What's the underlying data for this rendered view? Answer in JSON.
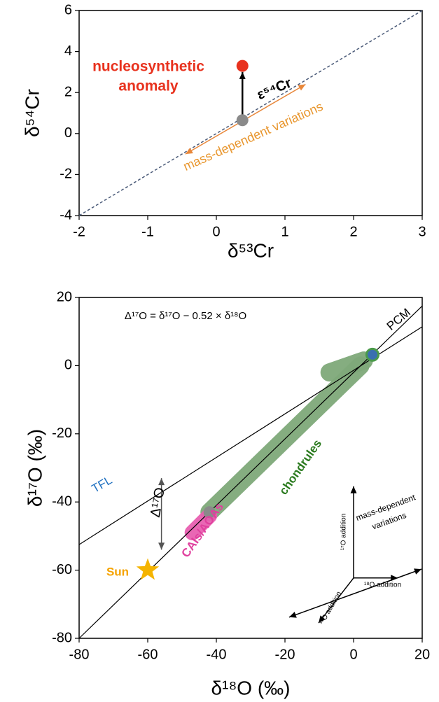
{
  "chart_data": [
    {
      "type": "scatter",
      "xlabel": "δ⁵³Cr",
      "ylabel": "δ⁵⁴Cr",
      "xlim": [
        -2,
        3
      ],
      "ylim": [
        -4,
        6
      ],
      "xticks": [
        -2,
        -1,
        0,
        1,
        2,
        3
      ],
      "yticks": [
        -4,
        -2,
        0,
        2,
        4,
        6
      ],
      "lines": [
        {
          "x": [
            -2,
            3
          ],
          "y": [
            -4,
            6
          ],
          "color": "#4a5a78",
          "dash": true
        }
      ],
      "bands": [],
      "arrows": [
        {
          "x": [
            0.38,
            0.38
          ],
          "y": [
            0.65,
            3.0
          ],
          "color": "#000000",
          "heads": 1
        },
        {
          "x": [
            -0.45,
            1.3
          ],
          "y": [
            -1.0,
            2.4
          ],
          "color": "#e8873a",
          "heads": 2
        }
      ],
      "points": {
        "x": [
          0.38,
          0.38
        ],
        "y": [
          0.65,
          3.3
        ],
        "colors": [
          "#8a8a8a",
          "#e8321e"
        ],
        "shapes": [
          "circle",
          "circle"
        ]
      },
      "annotations": [
        "nucleosynthetic",
        "anomaly",
        "ε⁵⁴Cr",
        "mass-dependent variations"
      ],
      "annotation_colors": [
        "#e8321e",
        "#e8321e",
        "#000000",
        "#e8962e"
      ]
    },
    {
      "type": "scatter",
      "xlabel": "δ¹⁸O (‰)",
      "ylabel": "δ¹⁷O (‰)",
      "xlim": [
        -80,
        20
      ],
      "ylim": [
        -80,
        20
      ],
      "xticks": [
        -80,
        -60,
        -40,
        -20,
        0,
        20
      ],
      "yticks": [
        -80,
        -60,
        -40,
        -20,
        0,
        20
      ],
      "lines": [
        {
          "x": [
            -80,
            20
          ],
          "y": [
            -52.5,
            11.4
          ],
          "color": "#000000",
          "dash": false
        },
        {
          "x": [
            -80,
            20
          ],
          "y": [
            -80,
            17.5
          ],
          "color": "#000000",
          "dash": false
        }
      ],
      "bands": [
        {
          "x": [
            -42,
            2
          ],
          "y": [
            -43,
            0
          ],
          "color": "#7fa97a"
        },
        {
          "x": [
            -7,
            3
          ],
          "y": [
            -2,
            1.5
          ],
          "color": "#7fa97a"
        },
        {
          "x": [
            -47,
            -42
          ],
          "y": [
            -49,
            -44
          ],
          "color": "#e85fb0"
        }
      ],
      "arrows": [
        {
          "x": [
            -56,
            -56
          ],
          "y": [
            -33,
            -54
          ],
          "color": "#555555",
          "heads": 2
        },
        {
          "x": [
            0,
            0
          ],
          "y": [
            -62.3,
            -35.4
          ],
          "color": "#000000",
          "heads": 1
        },
        {
          "x": [
            0,
            12.9
          ],
          "y": [
            -62.3,
            -62.3
          ],
          "color": "#000000",
          "heads": 1
        },
        {
          "x": [
            0,
            -10.2
          ],
          "y": [
            -62.3,
            -75.5
          ],
          "color": "#000000",
          "heads": 1
        },
        {
          "x": [
            -18.8,
            19.8
          ],
          "y": [
            -73.8,
            -59.7
          ],
          "color": "#000000",
          "heads": 2
        }
      ],
      "points": {
        "x": [
          -42,
          5.5,
          -60
        ],
        "y": [
          -43,
          3.2,
          -60
        ],
        "colors": [
          "#8a8a8a",
          "#3a6fb0",
          "#f5b400"
        ],
        "shapes": [
          "circle",
          "circle",
          "star"
        ]
      },
      "annotations": [
        "Δ¹⁷O = δ¹⁷O − 0.52 × δ¹⁸O",
        "PCM",
        "TFL",
        "Δ¹⁷O",
        "chondrules",
        "CAIs/AOAs",
        "Sun",
        "¹⁷O addition",
        "¹⁸O addition",
        "¹⁶O addition",
        "mass-dependent",
        "variations"
      ],
      "annotation_colors": [
        "#000000",
        "#000000",
        "#1e6fc0",
        "#000000",
        "#2a7a1e",
        "#e0409e",
        "#f5a300",
        "#000000",
        "#000000",
        "#000000",
        "#000000",
        "#000000"
      ]
    }
  ]
}
